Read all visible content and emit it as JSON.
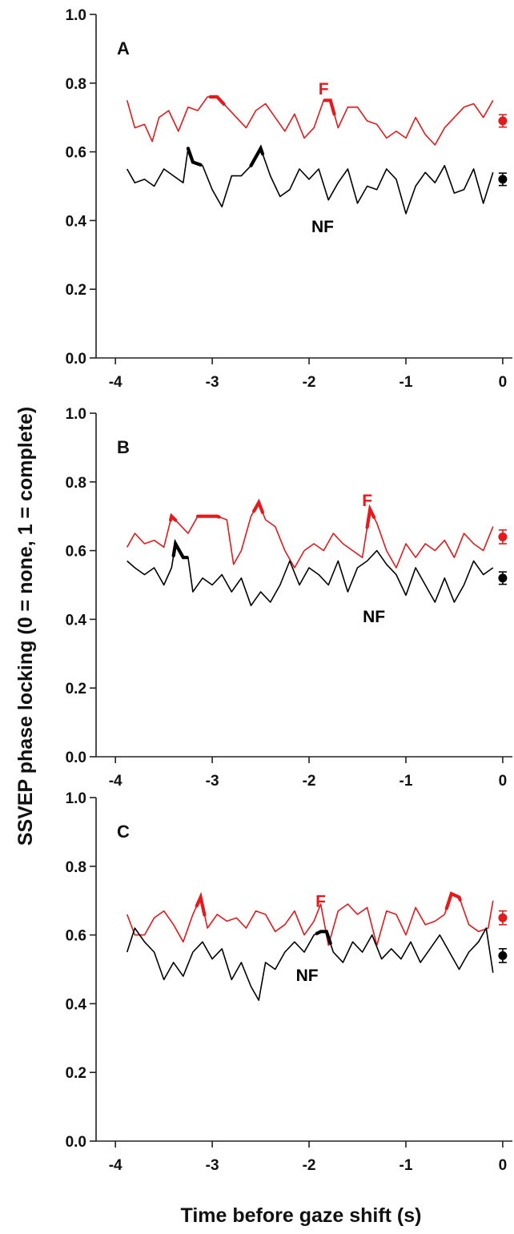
{
  "colors": {
    "F": "#e41a1c",
    "NF": "#000000",
    "axis": "#222222",
    "background": "#ffffff"
  },
  "figure": {
    "ylabel": "SSVEP phase locking (0 = none, 1 = complete)",
    "xlabel": "Time before gaze shift (s)"
  },
  "chart_data": [
    {
      "type": "line",
      "panel_label": "A",
      "xlim": [
        -4.2,
        0.1
      ],
      "ylim": [
        0.0,
        1.0
      ],
      "xticks": [
        -4,
        -3,
        -2,
        -1,
        0
      ],
      "xtick_labels": [
        "-4",
        "-3",
        "-2",
        "-1",
        "0"
      ],
      "yticks": [
        0.0,
        0.2,
        0.4,
        0.6,
        0.8,
        1.0
      ],
      "ytick_labels": [
        "0.0",
        "0.2",
        "0.4",
        "0.6",
        "0.8",
        "1.0"
      ],
      "grid": false,
      "series": [
        {
          "name": "F",
          "color": "#e41a1c",
          "x": [
            -3.88,
            -3.8,
            -3.7,
            -3.62,
            -3.55,
            -3.45,
            -3.35,
            -3.25,
            -3.15,
            -3.05,
            -2.95,
            -2.85,
            -2.75,
            -2.65,
            -2.55,
            -2.45,
            -2.35,
            -2.25,
            -2.15,
            -2.05,
            -1.95,
            -1.85,
            -1.78,
            -1.7,
            -1.6,
            -1.5,
            -1.4,
            -1.3,
            -1.2,
            -1.1,
            -1.0,
            -0.9,
            -0.8,
            -0.7,
            -0.6,
            -0.5,
            -0.4,
            -0.3,
            -0.2,
            -0.1
          ],
          "y": [
            0.75,
            0.67,
            0.68,
            0.63,
            0.7,
            0.72,
            0.66,
            0.73,
            0.72,
            0.76,
            0.76,
            0.73,
            0.7,
            0.67,
            0.72,
            0.74,
            0.7,
            0.66,
            0.71,
            0.64,
            0.67,
            0.75,
            0.75,
            0.67,
            0.73,
            0.73,
            0.69,
            0.68,
            0.64,
            0.66,
            0.64,
            0.7,
            0.65,
            0.62,
            0.67,
            0.7,
            0.73,
            0.74,
            0.7,
            0.75
          ],
          "highlight_x": [
            [
              -3.02,
              -2.88
            ],
            [
              -1.84,
              -1.74
            ]
          ],
          "label": "F",
          "label_x": -1.85,
          "label_y": 0.785,
          "mean_at": 0.0,
          "mean": 0.69,
          "err": 0.018
        },
        {
          "name": "NF",
          "color": "#000000",
          "x": [
            -3.88,
            -3.8,
            -3.7,
            -3.6,
            -3.5,
            -3.4,
            -3.3,
            -3.25,
            -3.2,
            -3.1,
            -3.0,
            -2.9,
            -2.8,
            -2.7,
            -2.6,
            -2.5,
            -2.4,
            -2.3,
            -2.2,
            -2.1,
            -2.0,
            -1.9,
            -1.8,
            -1.7,
            -1.6,
            -1.5,
            -1.4,
            -1.3,
            -1.2,
            -1.1,
            -1.0,
            -0.9,
            -0.8,
            -0.7,
            -0.6,
            -0.5,
            -0.4,
            -0.3,
            -0.2,
            -0.1
          ],
          "y": [
            0.55,
            0.51,
            0.52,
            0.5,
            0.55,
            0.53,
            0.51,
            0.61,
            0.57,
            0.56,
            0.49,
            0.44,
            0.53,
            0.53,
            0.56,
            0.61,
            0.53,
            0.47,
            0.49,
            0.55,
            0.52,
            0.55,
            0.46,
            0.51,
            0.55,
            0.45,
            0.5,
            0.49,
            0.55,
            0.52,
            0.42,
            0.5,
            0.54,
            0.51,
            0.56,
            0.48,
            0.49,
            0.55,
            0.45,
            0.54
          ],
          "highlight_x": [
            [
              -3.25,
              -3.12
            ],
            [
              -2.6,
              -2.48
            ]
          ],
          "label": "NF",
          "label_x": -1.86,
          "label_y": 0.385,
          "mean_at": 0.0,
          "mean": 0.52,
          "err": 0.018
        }
      ]
    },
    {
      "type": "line",
      "panel_label": "B",
      "xlim": [
        -4.2,
        0.1
      ],
      "ylim": [
        0.0,
        1.0
      ],
      "xticks": [
        -4,
        -3,
        -2,
        -1,
        0
      ],
      "xtick_labels": [
        "-4",
        "-3",
        "-2",
        "-1",
        "0"
      ],
      "yticks": [
        0.0,
        0.2,
        0.4,
        0.6,
        0.8,
        1.0
      ],
      "ytick_labels": [
        "0.0",
        "0.2",
        "0.4",
        "0.6",
        "0.8",
        "1.0"
      ],
      "grid": false,
      "series": [
        {
          "name": "F",
          "color": "#e41a1c",
          "x": [
            -3.88,
            -3.8,
            -3.7,
            -3.6,
            -3.5,
            -3.42,
            -3.35,
            -3.25,
            -3.15,
            -3.05,
            -2.95,
            -2.85,
            -2.78,
            -2.7,
            -2.6,
            -2.52,
            -2.45,
            -2.35,
            -2.25,
            -2.15,
            -2.05,
            -1.95,
            -1.85,
            -1.75,
            -1.65,
            -1.55,
            -1.45,
            -1.37,
            -1.3,
            -1.2,
            -1.1,
            -1.0,
            -0.9,
            -0.8,
            -0.7,
            -0.6,
            -0.5,
            -0.4,
            -0.3,
            -0.2,
            -0.1
          ],
          "y": [
            0.61,
            0.65,
            0.62,
            0.63,
            0.61,
            0.7,
            0.68,
            0.65,
            0.7,
            0.7,
            0.7,
            0.69,
            0.56,
            0.6,
            0.7,
            0.74,
            0.69,
            0.67,
            0.6,
            0.55,
            0.6,
            0.62,
            0.6,
            0.65,
            0.62,
            0.6,
            0.58,
            0.72,
            0.68,
            0.6,
            0.55,
            0.62,
            0.58,
            0.62,
            0.6,
            0.63,
            0.58,
            0.65,
            0.62,
            0.6,
            0.67
          ],
          "highlight_x": [
            [
              -3.43,
              -3.38
            ],
            [
              -3.15,
              -2.93
            ],
            [
              -2.57,
              -2.48
            ],
            [
              -1.4,
              -1.33
            ]
          ],
          "label": "F",
          "label_x": -1.4,
          "label_y": 0.748,
          "mean_at": 0.0,
          "mean": 0.64,
          "err": 0.02
        },
        {
          "name": "NF",
          "color": "#000000",
          "x": [
            -3.88,
            -3.8,
            -3.7,
            -3.6,
            -3.5,
            -3.42,
            -3.38,
            -3.3,
            -3.25,
            -3.2,
            -3.1,
            -3.0,
            -2.9,
            -2.8,
            -2.7,
            -2.6,
            -2.5,
            -2.4,
            -2.3,
            -2.2,
            -2.1,
            -2.0,
            -1.9,
            -1.8,
            -1.7,
            -1.6,
            -1.5,
            -1.4,
            -1.3,
            -1.2,
            -1.1,
            -1.0,
            -0.9,
            -0.8,
            -0.7,
            -0.6,
            -0.5,
            -0.4,
            -0.3,
            -0.2,
            -0.1
          ],
          "y": [
            0.57,
            0.55,
            0.53,
            0.55,
            0.5,
            0.55,
            0.62,
            0.58,
            0.58,
            0.48,
            0.52,
            0.5,
            0.53,
            0.48,
            0.52,
            0.44,
            0.48,
            0.45,
            0.5,
            0.57,
            0.5,
            0.55,
            0.53,
            0.5,
            0.57,
            0.48,
            0.55,
            0.57,
            0.6,
            0.56,
            0.53,
            0.47,
            0.55,
            0.5,
            0.45,
            0.52,
            0.45,
            0.5,
            0.57,
            0.53,
            0.55
          ],
          "highlight_x": [
            [
              -3.4,
              -3.26
            ]
          ],
          "label": "NF",
          "label_x": -1.33,
          "label_y": 0.41,
          "mean_at": 0.0,
          "mean": 0.52,
          "err": 0.018
        }
      ]
    },
    {
      "type": "line",
      "panel_label": "C",
      "xlim": [
        -4.2,
        0.1
      ],
      "ylim": [
        0.0,
        1.0
      ],
      "xticks": [
        -4,
        -3,
        -2,
        -1,
        0
      ],
      "xtick_labels": [
        "-4",
        "-3",
        "-2",
        "-1",
        "0"
      ],
      "yticks": [
        0.0,
        0.2,
        0.4,
        0.6,
        0.8,
        1.0
      ],
      "ytick_labels": [
        "0.0",
        "0.2",
        "0.4",
        "0.6",
        "0.8",
        "1.0"
      ],
      "grid": false,
      "series": [
        {
          "name": "F",
          "color": "#e41a1c",
          "x": [
            -3.88,
            -3.8,
            -3.7,
            -3.6,
            -3.5,
            -3.4,
            -3.3,
            -3.2,
            -3.12,
            -3.05,
            -2.95,
            -2.85,
            -2.75,
            -2.65,
            -2.55,
            -2.45,
            -2.35,
            -2.25,
            -2.15,
            -2.05,
            -1.95,
            -1.88,
            -1.8,
            -1.7,
            -1.6,
            -1.5,
            -1.4,
            -1.3,
            -1.2,
            -1.1,
            -1.0,
            -0.9,
            -0.8,
            -0.7,
            -0.6,
            -0.53,
            -0.45,
            -0.35,
            -0.25,
            -0.15,
            -0.1
          ],
          "y": [
            0.66,
            0.6,
            0.6,
            0.65,
            0.67,
            0.63,
            0.58,
            0.66,
            0.71,
            0.62,
            0.66,
            0.64,
            0.65,
            0.62,
            0.67,
            0.66,
            0.61,
            0.63,
            0.67,
            0.6,
            0.64,
            0.69,
            0.57,
            0.67,
            0.69,
            0.66,
            0.68,
            0.57,
            0.67,
            0.66,
            0.6,
            0.68,
            0.63,
            0.64,
            0.66,
            0.72,
            0.71,
            0.63,
            0.61,
            0.62,
            0.7
          ],
          "highlight_x": [
            [
              -3.16,
              -3.08
            ],
            [
              -0.58,
              -0.44
            ]
          ],
          "label": "F",
          "label_x": -1.88,
          "label_y": 0.7,
          "mean_at": 0.0,
          "mean": 0.65,
          "err": 0.02
        },
        {
          "name": "NF",
          "color": "#000000",
          "x": [
            -3.88,
            -3.8,
            -3.7,
            -3.6,
            -3.5,
            -3.4,
            -3.3,
            -3.2,
            -3.1,
            -3.0,
            -2.9,
            -2.8,
            -2.7,
            -2.6,
            -2.52,
            -2.45,
            -2.35,
            -2.25,
            -2.15,
            -2.05,
            -1.95,
            -1.88,
            -1.82,
            -1.75,
            -1.65,
            -1.55,
            -1.45,
            -1.35,
            -1.25,
            -1.15,
            -1.05,
            -0.95,
            -0.85,
            -0.75,
            -0.65,
            -0.55,
            -0.45,
            -0.35,
            -0.25,
            -0.17,
            -0.1
          ],
          "y": [
            0.55,
            0.62,
            0.58,
            0.55,
            0.47,
            0.52,
            0.48,
            0.55,
            0.58,
            0.53,
            0.56,
            0.47,
            0.52,
            0.45,
            0.41,
            0.52,
            0.5,
            0.55,
            0.58,
            0.55,
            0.6,
            0.61,
            0.61,
            0.55,
            0.52,
            0.58,
            0.55,
            0.6,
            0.53,
            0.56,
            0.53,
            0.58,
            0.52,
            0.56,
            0.6,
            0.55,
            0.5,
            0.55,
            0.58,
            0.62,
            0.49
          ],
          "highlight_x": [
            [
              -1.92,
              -1.78
            ]
          ],
          "label": "NF",
          "label_x": -2.02,
          "label_y": 0.485,
          "mean_at": 0.0,
          "mean": 0.54,
          "err": 0.02
        }
      ]
    }
  ]
}
